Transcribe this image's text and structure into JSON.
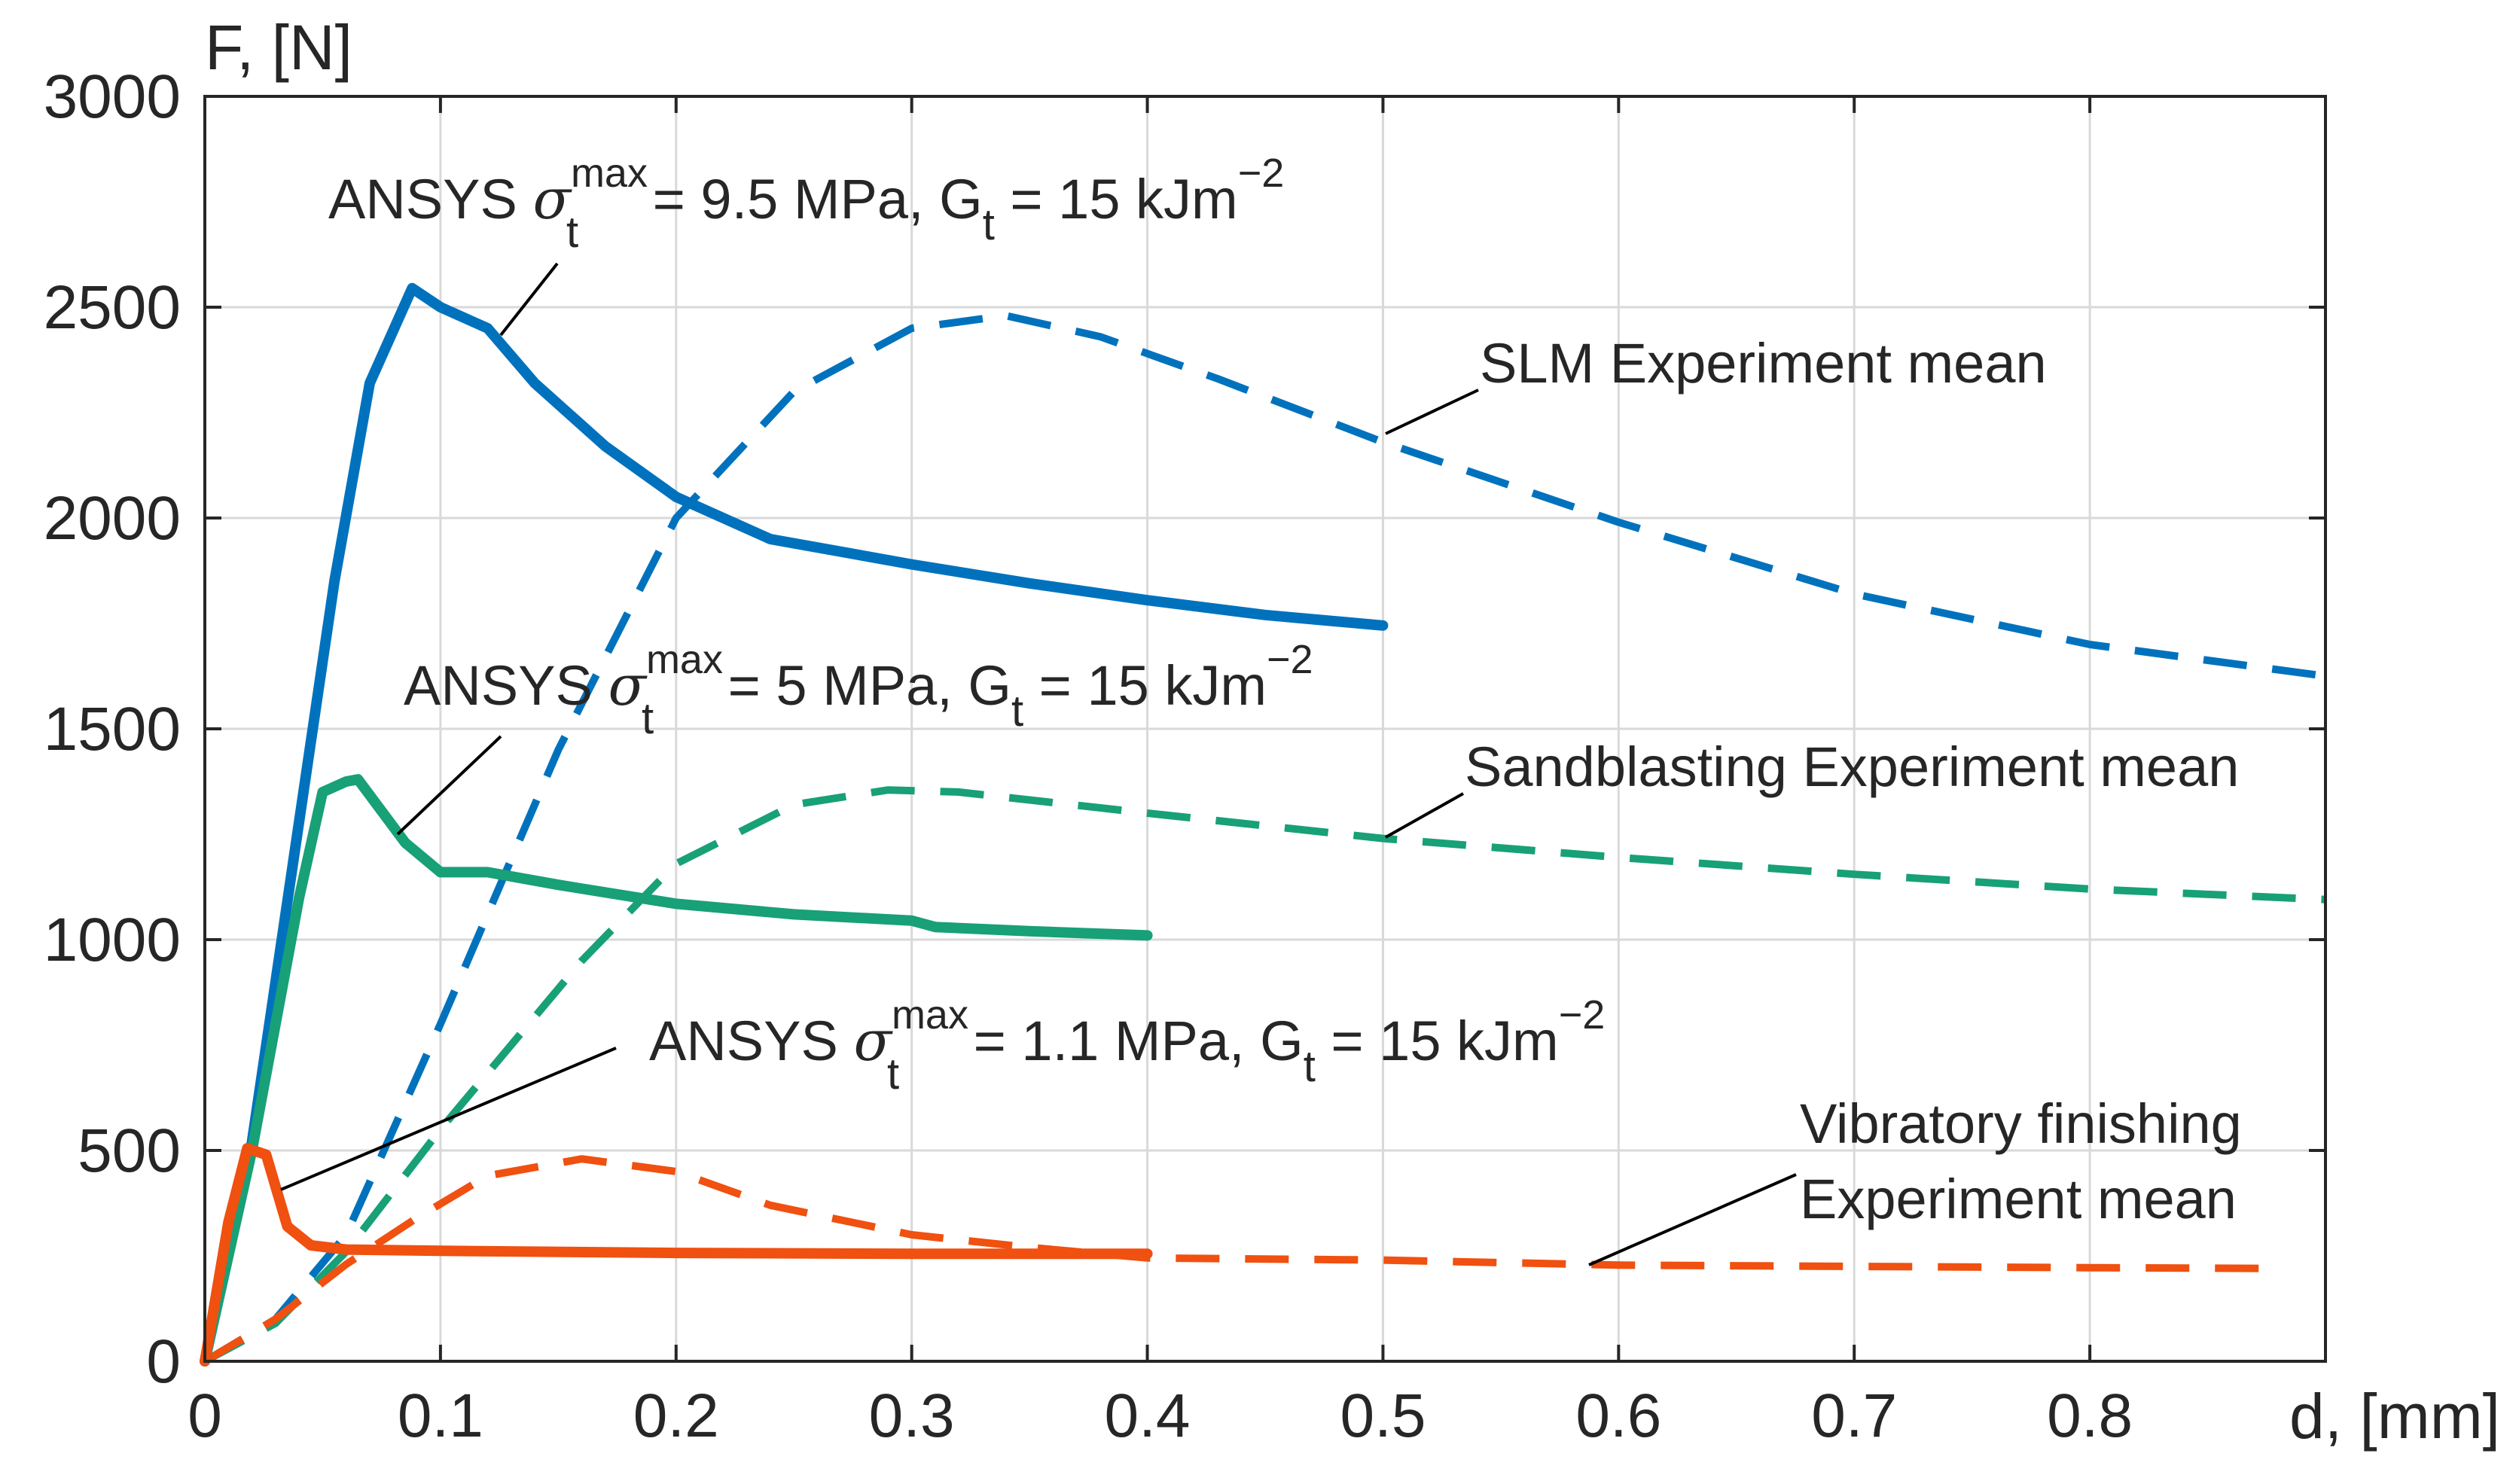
{
  "chart_data": {
    "type": "line",
    "title": "",
    "xlabel": "d, [mm]",
    "ylabel": "F, [N]",
    "xlim": [
      0,
      0.9
    ],
    "ylim": [
      0,
      3000
    ],
    "xticks": [
      0,
      0.1,
      0.2,
      0.3,
      0.4,
      0.5,
      0.6,
      0.7,
      0.8
    ],
    "xtick_labels": [
      "0",
      "0.1",
      "0.2",
      "0.3",
      "0.4",
      "0.5",
      "0.6",
      "0.7",
      "0.8"
    ],
    "yticks": [
      0,
      500,
      1000,
      1500,
      2000,
      2500,
      3000
    ],
    "ytick_labels": [
      "0",
      "500",
      "1000",
      "1500",
      "2000",
      "2500",
      "3000"
    ],
    "grid": true,
    "series": [
      {
        "name": "ANSYS 9.5 MPa",
        "style": "solid",
        "color": "#0072BD",
        "x": [
          0,
          0.02,
          0.04,
          0.055,
          0.07,
          0.088,
          0.1,
          0.12,
          0.14,
          0.17,
          0.2,
          0.24,
          0.3,
          0.35,
          0.4,
          0.45,
          0.5
        ],
        "y": [
          0,
          520,
          1280,
          1850,
          2320,
          2545,
          2500,
          2450,
          2320,
          2170,
          2050,
          1950,
          1890,
          1845,
          1805,
          1770,
          1745
        ]
      },
      {
        "name": "ANSYS 5 MPa",
        "style": "solid",
        "color": "#18A077",
        "x": [
          0,
          0.02,
          0.04,
          0.05,
          0.06,
          0.065,
          0.085,
          0.1,
          0.12,
          0.15,
          0.2,
          0.25,
          0.3,
          0.31,
          0.35,
          0.4
        ],
        "y": [
          0,
          500,
          1100,
          1350,
          1375,
          1380,
          1230,
          1160,
          1160,
          1130,
          1085,
          1060,
          1045,
          1030,
          1020,
          1010
        ]
      },
      {
        "name": "ANSYS 1.1 MPa",
        "style": "solid",
        "color": "#F05010",
        "x": [
          0,
          0.01,
          0.018,
          0.026,
          0.035,
          0.045,
          0.06,
          0.1,
          0.2,
          0.3,
          0.4
        ],
        "y": [
          0,
          330,
          505,
          490,
          320,
          275,
          265,
          262,
          257,
          255,
          255
        ]
      },
      {
        "name": "SLM Experiment mean",
        "style": "dashed",
        "color": "#0072BD",
        "x": [
          0,
          0.03,
          0.06,
          0.1,
          0.15,
          0.2,
          0.25,
          0.3,
          0.34,
          0.38,
          0.43,
          0.5,
          0.6,
          0.7,
          0.8,
          0.9
        ],
        "y": [
          0,
          100,
          300,
          800,
          1450,
          2000,
          2300,
          2450,
          2480,
          2430,
          2330,
          2180,
          1990,
          1820,
          1700,
          1625
        ]
      },
      {
        "name": "Sandblasting Experiment mean",
        "style": "dashed",
        "color": "#18A077",
        "x": [
          0,
          0.03,
          0.06,
          0.1,
          0.16,
          0.2,
          0.25,
          0.29,
          0.32,
          0.4,
          0.5,
          0.6,
          0.7,
          0.8,
          0.9
        ],
        "y": [
          0,
          90,
          260,
          550,
          950,
          1180,
          1320,
          1355,
          1350,
          1300,
          1240,
          1195,
          1155,
          1120,
          1095
        ]
      },
      {
        "name": "Vibratory finishing Experiment mean",
        "style": "dashed",
        "color": "#F05010",
        "x": [
          0,
          0.03,
          0.06,
          0.09,
          0.12,
          0.16,
          0.2,
          0.24,
          0.3,
          0.35,
          0.4,
          0.5,
          0.6,
          0.7,
          0.8,
          0.88
        ],
        "y": [
          0,
          100,
          230,
          340,
          440,
          480,
          450,
          370,
          300,
          270,
          245,
          240,
          228,
          225,
          222,
          220
        ]
      }
    ],
    "annotations": [
      {
        "id": "ann1",
        "prefix": "ANSYS ",
        "symbol": "σ",
        "sub": "t",
        "sup": "max",
        "middle": " = 9.5 MPa, G",
        "sub2": "t",
        "after": " = 15 kJm",
        "sup2": "−2"
      },
      {
        "id": "ann2",
        "prefix": "ANSYS ",
        "symbol": "σ",
        "sub": "t",
        "sup": "max",
        "middle": " = 5 MPa, G",
        "sub2": "t",
        "after": " = 15 kJm",
        "sup2": "−2"
      },
      {
        "id": "ann3",
        "prefix": "ANSYS ",
        "symbol": "σ",
        "sub": "t",
        "sup": "max",
        "middle": " = 1.1 MPa, G",
        "sub2": "t",
        "after": " = 15 kJm",
        "sup2": "−2"
      }
    ],
    "labels": {
      "slm": "SLM Experiment mean",
      "sand": "Sandblasting Experiment mean",
      "vib_line1": "Vibratory finishing",
      "vib_line2": "Experiment mean"
    }
  }
}
